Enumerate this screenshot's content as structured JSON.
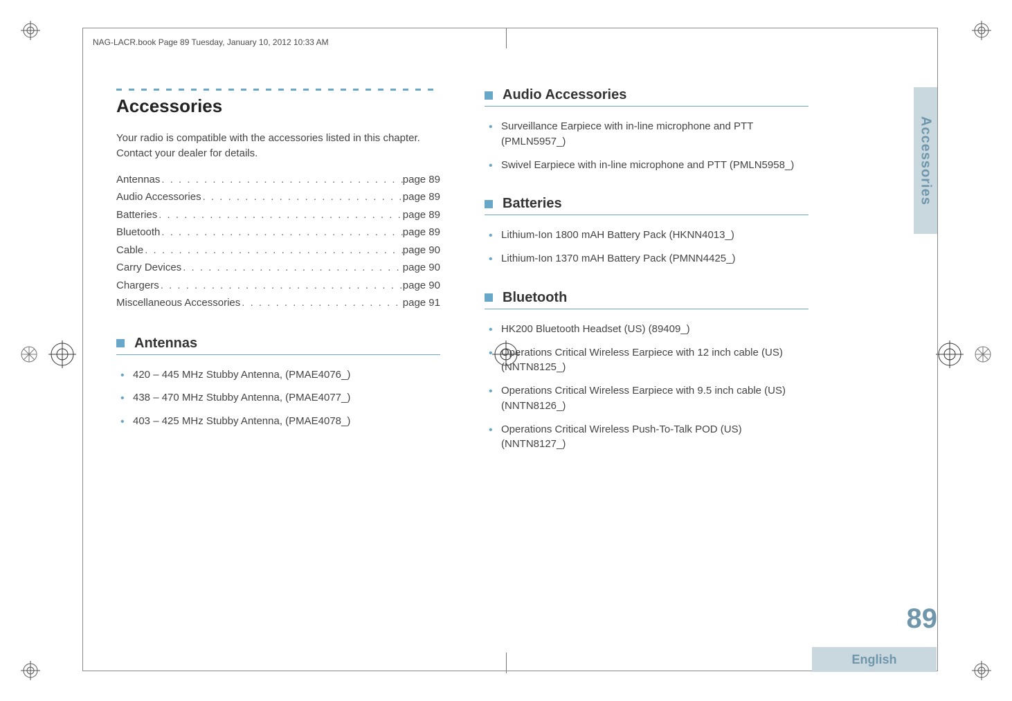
{
  "header": "NAG-LACR.book  Page 89  Tuesday, January 10, 2012  10:33 AM",
  "title": "Accessories",
  "intro": "Your radio is compatible with the accessories listed in this chapter. Contact your dealer for details.",
  "toc": [
    {
      "label": "Antennas",
      "page": "page 89"
    },
    {
      "label": "Audio Accessories",
      "page": "page 89"
    },
    {
      "label": "Batteries",
      "page": "page 89"
    },
    {
      "label": "Bluetooth",
      "page": "page 89"
    },
    {
      "label": "Cable",
      "page": "page 90"
    },
    {
      "label": "Carry Devices",
      "page": "page 90"
    },
    {
      "label": "Chargers",
      "page": "page 90"
    },
    {
      "label": "Miscellaneous Accessories",
      "page": "page 91"
    }
  ],
  "sections": {
    "antennas": {
      "title": "Antennas",
      "items": [
        "420 – 445 MHz Stubby Antenna, (PMAE4076_)",
        "438 – 470 MHz Stubby Antenna, (PMAE4077_)",
        "403 – 425 MHz Stubby Antenna, (PMAE4078_)"
      ]
    },
    "audio": {
      "title": "Audio Accessories",
      "items": [
        "Surveillance Earpiece with in-line microphone and PTT (PMLN5957_)",
        "Swivel Earpiece with in-line microphone and PTT (PMLN5958_)"
      ]
    },
    "batteries": {
      "title": "Batteries",
      "items": [
        "Lithium-Ion 1800 mAH Battery Pack (HKNN4013_)",
        "Lithium-Ion 1370 mAH Battery Pack (PMNN4425_)"
      ]
    },
    "bluetooth": {
      "title": "Bluetooth",
      "items": [
        "HK200 Bluetooth Headset (US) (89409_)",
        "Operations Critical Wireless Earpiece with 12 inch cable (US) (NNTN8125_)",
        "Operations Critical Wireless Earpiece with 9.5 inch cable (US) (NNTN8126_)",
        "Operations Critical Wireless Push-To-Talk POD (US) (NNTN8127_)"
      ]
    }
  },
  "sideTab": "Accessories",
  "pageNumber": "89",
  "language": "English",
  "colors": {
    "accent": "#69a7c9",
    "tabBg": "#c9d7df",
    "tabText": "#6f96ab",
    "bodyText": "#444444"
  },
  "fonts": {
    "body_size_pt": 11,
    "title_size_pt": 20,
    "section_size_pt": 15,
    "pagenum_size_pt": 30
  }
}
